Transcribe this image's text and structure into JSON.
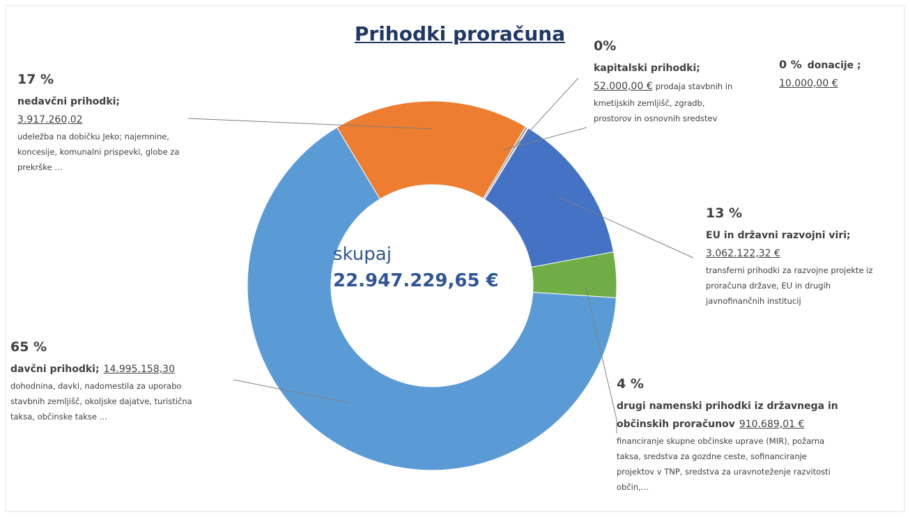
{
  "chart_data": {
    "type": "pie",
    "donut": true,
    "title": "Prihodki proračuna",
    "categories": [
      "nedavčni prihodki;",
      "kapitalski prihodki;",
      "donacije ;",
      "EU in državni razvojni viri;",
      "drugi namenski prihodki iz državnega in občinskih proračunov",
      "davčni prihodki;"
    ],
    "values": [
      3917260.02,
      52000,
      10000,
      3062122.32,
      910689.01,
      14995158.3
    ],
    "value_labels": [
      "3.917.260,02",
      "52.000,00 €",
      "10.000,00 €",
      "3.062.122,32 €",
      "910.689,01 €",
      "14.995.158,30"
    ],
    "percent_labels": [
      "17 %",
      "0%",
      "0 %",
      "13 %",
      "4 %",
      "65 %"
    ],
    "colors": [
      "#ed7d31",
      "#a5a5a5",
      "#ffc000",
      "#4472c4",
      "#70ad47",
      "#5b9bd5"
    ],
    "descriptions": [
      [
        "udeležba na dobičku Jeko; najemnine,",
        "koncesije, komunalni prispevki, globe za",
        "prekrške …"
      ],
      [
        "prodaja stavbnih in",
        "kmetijskih zemljišč, zgradb,",
        "prostorov in osnovnih sredstev"
      ],
      [],
      [
        "transferni prihodki za razvojne projekte iz",
        "proračuna države, EU in drugih",
        "javnofinančnih institucij"
      ],
      [
        "financiranje skupne občinske uprave (MIR), požarna",
        "taksa, sredstva za gozdne ceste, sofinanciranje",
        "projektov v TNP, sredstva za uravnoteženje razvitosti",
        "občin,…"
      ],
      [
        "dohodnina, davki, nadomestila za uporabo",
        "stavbnih zemljišč, okoljske dajatve, turistična",
        "taksa, občinske takse …"
      ]
    ],
    "center": {
      "label": "skupaj",
      "total": 22947229.65,
      "total_label": "22.947.229,65 €"
    }
  }
}
